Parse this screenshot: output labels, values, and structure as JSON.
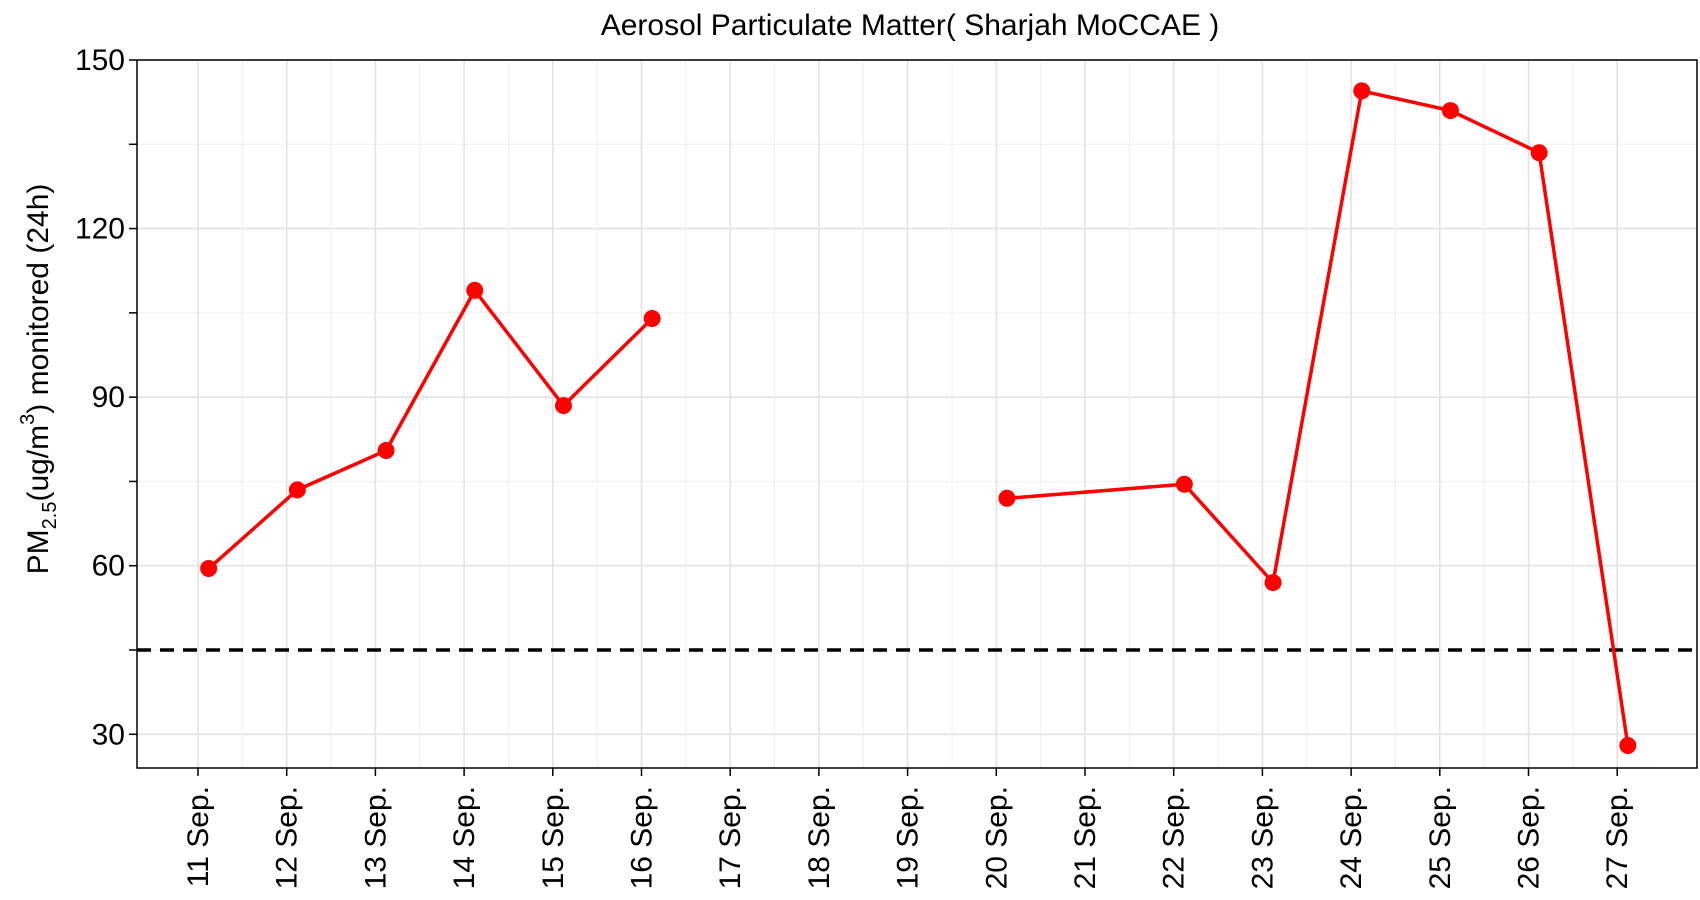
{
  "chart_data": {
    "type": "line",
    "title": "Aerosol Particulate Matter( Sharjah MoCCAE )",
    "ylabel": {
      "prefix": "PM",
      "subscript": "2.5",
      "middle": "(ug/m",
      "superscript": "3",
      "suffix": ") monitored (24h)"
    },
    "xlabel": "",
    "categories": [
      "11 Sep.",
      "12 Sep.",
      "13 Sep.",
      "14 Sep.",
      "15 Sep.",
      "16 Sep.",
      "17 Sep.",
      "18 Sep.",
      "19 Sep.",
      "20 Sep.",
      "21 Sep.",
      "22 Sep.",
      "23 Sep.",
      "24 Sep.",
      "25 Sep.",
      "26 Sep.",
      "27 Sep."
    ],
    "x_offset": 0.12,
    "ylim": [
      24,
      150
    ],
    "yticks": [
      30,
      60,
      90,
      120,
      150
    ],
    "grid": true,
    "series": [
      {
        "color": "#ff0000",
        "values": [
          59.5,
          73.5,
          80.5,
          109,
          88.5,
          104,
          null,
          null,
          null,
          72,
          null,
          74.5,
          57,
          144.5,
          141,
          133.5,
          28
        ]
      }
    ],
    "reference_line": {
      "y": 45,
      "style": "dashed",
      "color": "#000000"
    }
  }
}
